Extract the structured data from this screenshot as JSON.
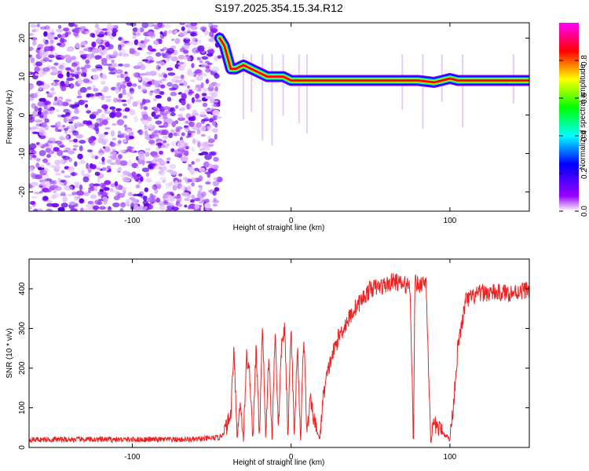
{
  "page_title": "S197.2025.354.15.34.R12",
  "chart_data": [
    {
      "type": "heatmap",
      "name": "spectrogram",
      "title": "S197.2025.354.15.34.R12",
      "xlabel": "Height of straight line (km)",
      "ylabel": "Frequency (Hz)",
      "xlim": [
        -165,
        150
      ],
      "ylim": [
        -25,
        24
      ],
      "xticks": [
        -100,
        0,
        100
      ],
      "xtick_labels": [
        "-100",
        "0",
        "100"
      ],
      "yticks": [
        -20,
        -10,
        0,
        10,
        20
      ],
      "ytick_labels": [
        "-20",
        "-10",
        "0",
        "10",
        "20"
      ],
      "signal_track": {
        "x": [
          -45,
          -42,
          -38,
          -35,
          -30,
          -25,
          -20,
          -15,
          -10,
          -5,
          0,
          5,
          10,
          15,
          30,
          50,
          70,
          80,
          90,
          95,
          100,
          105,
          110,
          150
        ],
        "y": [
          20,
          18,
          12,
          12,
          13,
          12,
          11,
          10,
          10,
          10,
          9,
          9,
          9,
          9,
          9,
          9,
          9,
          9,
          8.5,
          9,
          9.5,
          9,
          9,
          9
        ]
      },
      "noise_region_x": [
        -165,
        -50
      ],
      "colorbar": {
        "label": "Normalized spectral amplitude",
        "range": [
          0,
          1
        ],
        "ticks": [
          0.0,
          0.2,
          0.4,
          0.6,
          0.8
        ],
        "tick_labels": [
          "0.0",
          "0.2",
          "0.4",
          "0.6",
          "0.8"
        ],
        "colors": [
          "#ffffff",
          "#9900ff",
          "#0000ff",
          "#00ffff",
          "#00ff00",
          "#ffff00",
          "#ff0000",
          "#ff00ff"
        ]
      }
    },
    {
      "type": "line",
      "name": "snr",
      "xlabel": "Height of straight line (km)",
      "ylabel": "SNR (10 * v/v)",
      "xlim": [
        -165,
        150
      ],
      "ylim": [
        0,
        475
      ],
      "xticks": [
        -100,
        0,
        100
      ],
      "xtick_labels": [
        "-100",
        "0",
        "100"
      ],
      "yticks": [
        0,
        100,
        200,
        300,
        400
      ],
      "ytick_labels": [
        "0",
        "100",
        "200",
        "300",
        "400"
      ],
      "color": "#ee2222",
      "series": [
        {
          "name": "SNR",
          "x": [
            -165,
            -60,
            -45,
            -42,
            -38,
            -36,
            -34,
            -32,
            -30,
            -28,
            -26,
            -24,
            -22,
            -20,
            -18,
            -16,
            -14,
            -12,
            -10,
            -8,
            -6,
            -4,
            -2,
            0,
            2,
            4,
            6,
            8,
            10,
            12,
            15,
            18,
            20,
            22,
            25,
            30,
            40,
            50,
            60,
            65,
            70,
            75,
            77,
            78,
            80,
            85,
            88,
            89,
            90,
            95,
            100,
            102,
            105,
            110,
            120,
            130,
            140,
            150
          ],
          "y": [
            20,
            20,
            25,
            40,
            80,
            260,
            20,
            120,
            20,
            230,
            180,
            20,
            260,
            20,
            320,
            20,
            240,
            20,
            300,
            40,
            260,
            300,
            20,
            320,
            20,
            260,
            20,
            290,
            30,
            120,
            60,
            20,
            120,
            170,
            220,
            280,
            350,
            400,
            410,
            420,
            410,
            410,
            0,
            420,
            410,
            420,
            0,
            40,
            60,
            40,
            20,
            100,
            250,
            370,
            390,
            390,
            390,
            400
          ]
        }
      ]
    }
  ]
}
